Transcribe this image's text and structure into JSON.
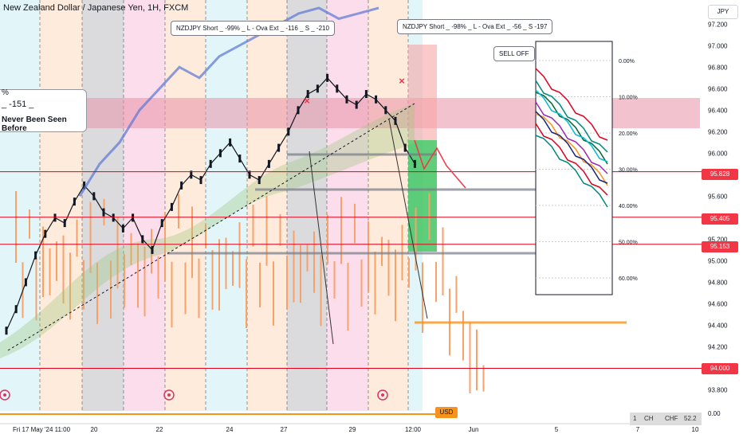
{
  "header": {
    "title": "New Zealand Dollar / Japanese Yen, 1H, FXCM"
  },
  "currency_button": "JPY",
  "annotations": {
    "short1": "NZDJPY Short _ -99% _ L  -  Ova Ext _ -116 _ S _ -210",
    "short2": "NZDJPY Short _ -98% _ L  -  Ova Ext _ -56 _ S -197",
    "selloff": "SELL OFF",
    "callout_line1": "%",
    "callout_line2": "_ -151 _",
    "callout_line3": "Never Been Seen Before"
  },
  "price_labels": [
    {
      "value": "95.828",
      "color": "#f23645"
    },
    {
      "value": "95.405",
      "color": "#f23645"
    },
    {
      "value": "95.153",
      "color": "#f23645"
    },
    {
      "value": "94.000",
      "color": "#f23645"
    }
  ],
  "usd_tag": "USD",
  "fx_box": {
    "left": "1",
    "mid1": "CH",
    "mid2": "CHF",
    "right": "52.2"
  },
  "colors": {
    "candle": "#131722",
    "overlay_line": "#5b76d6",
    "orange_bars": "#f7a26b",
    "red_lines": "#e0001b",
    "cloud": "#9cc77a",
    "pink_zone": "#e892a8",
    "green_zone": "#43c463"
  },
  "chart_data": {
    "type": "line",
    "title": "New Zealand Dollar / Japanese Yen, 1H, FXCM",
    "y_axis": {
      "ticks": [
        "97.200",
        "97.000",
        "96.800",
        "96.600",
        "96.400",
        "96.200",
        "96.000",
        "95.800",
        "95.600",
        "95.400",
        "95.200",
        "95.000",
        "94.800",
        "94.600",
        "94.400",
        "94.200",
        "94.000",
        "93.800"
      ],
      "ylim": [
        93.7,
        97.35
      ]
    },
    "x_axis": {
      "ticks": [
        "Fri 17 May '24  11:00",
        "20",
        "22",
        "24",
        "27",
        "29",
        "12:00",
        "Jun",
        "5",
        "7",
        "10"
      ]
    },
    "horizontal_levels": [
      95.828,
      95.405,
      95.153,
      94.0
    ],
    "inset_percent_ticks": [
      "0.00%",
      "10.00%",
      "20.00%",
      "30.00%",
      "40.00%",
      "50.00%",
      "60.00%"
    ],
    "zero_axis_label": "0.00",
    "series": [
      {
        "values": [
          94.35,
          94.55,
          94.8,
          95.05,
          95.25,
          95.4,
          95.35,
          95.55,
          95.7,
          95.6,
          95.45,
          95.4,
          95.3,
          95.4,
          95.2,
          95.1,
          95.35,
          95.5,
          95.7,
          95.8,
          95.75,
          95.9,
          96.0,
          96.1,
          95.95,
          95.8,
          95.75,
          95.9,
          96.05,
          96.2,
          96.4,
          96.55,
          96.6,
          96.7,
          96.6,
          96.5,
          96.45,
          96.55,
          96.5,
          96.4,
          96.3,
          96.05,
          95.9
        ]
      },
      {
        "values": [
          95.6,
          95.9,
          96.1,
          96.4,
          96.6,
          96.8,
          96.7,
          96.9,
          97.0,
          97.1,
          97.2,
          97.3,
          97.35,
          97.25,
          97.3,
          97.35
        ]
      }
    ]
  }
}
